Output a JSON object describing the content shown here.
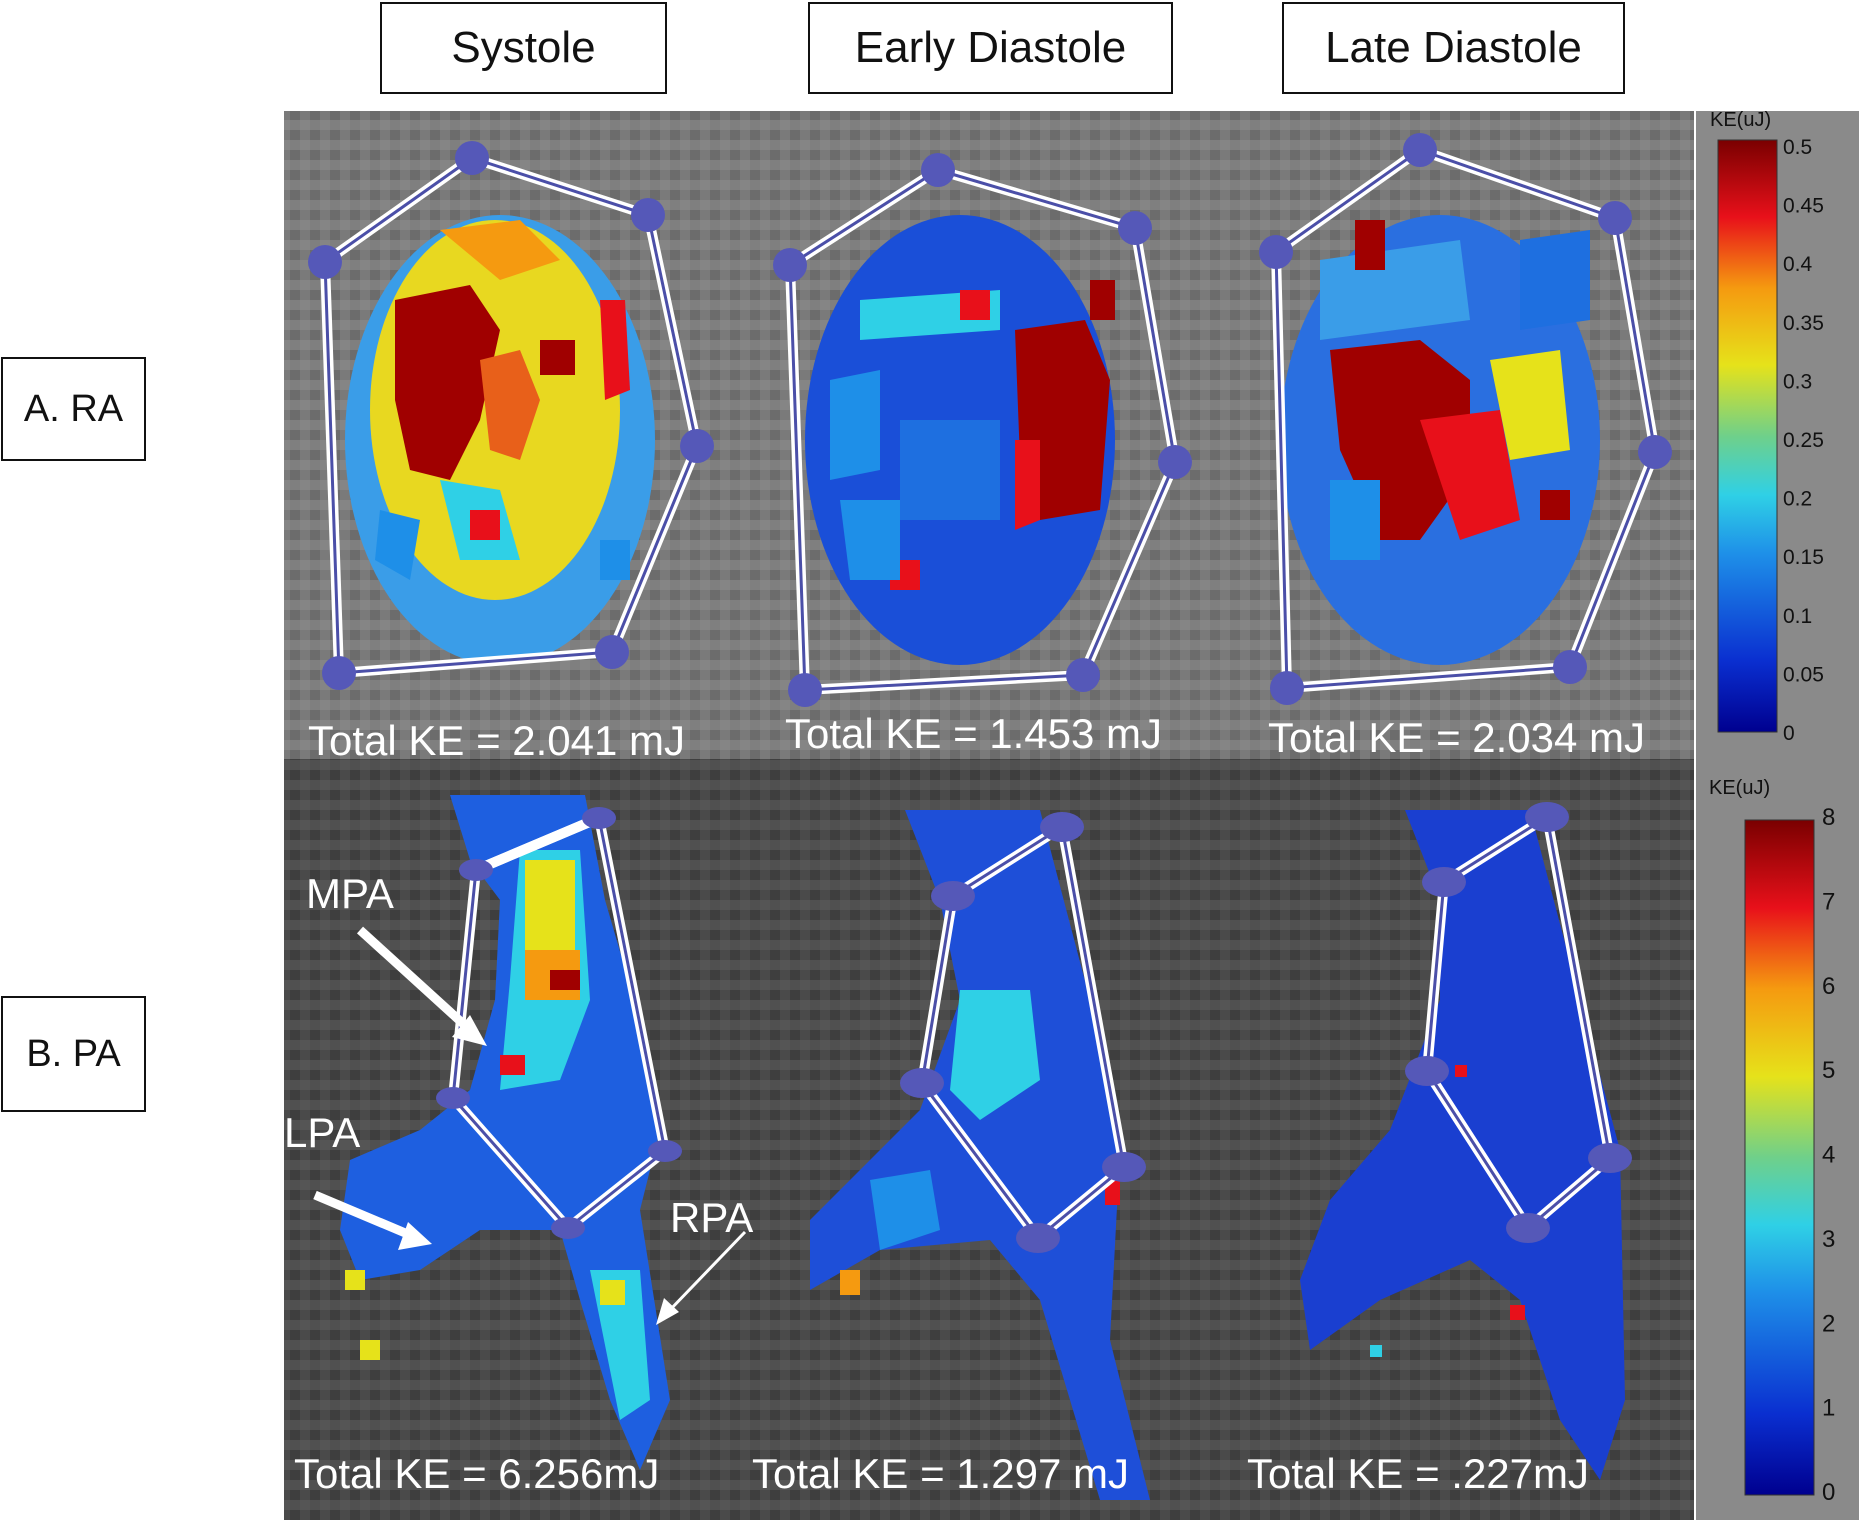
{
  "columns": [
    "Systole",
    "Early Diastole",
    "Late Diastole"
  ],
  "rows": [
    "A. RA",
    "B. PA"
  ],
  "panels": {
    "ra": [
      {
        "total_ke": "Total KE = 2.041 mJ"
      },
      {
        "total_ke": "Total KE = 1.453 mJ"
      },
      {
        "total_ke": "Total KE = 2.034 mJ"
      }
    ],
    "pa": [
      {
        "total_ke": "Total KE = 6.256mJ"
      },
      {
        "total_ke": "Total KE = 1.297 mJ"
      },
      {
        "total_ke": "Total KE = .227mJ"
      }
    ]
  },
  "annotations": [
    "MPA",
    "LPA",
    "RPA"
  ],
  "colorbars": {
    "ra": {
      "title": "KE(uJ)",
      "ticks": [
        "0.5",
        "0.45",
        "0.4",
        "0.35",
        "0.3",
        "0.25",
        "0.2",
        "0.15",
        "0.1",
        "0.05",
        "0"
      ]
    },
    "pa": {
      "title": "KE(uJ)",
      "ticks": [
        "8",
        "7",
        "6",
        "5",
        "4",
        "3",
        "2",
        "1",
        "0"
      ]
    }
  },
  "colormap": "jet"
}
